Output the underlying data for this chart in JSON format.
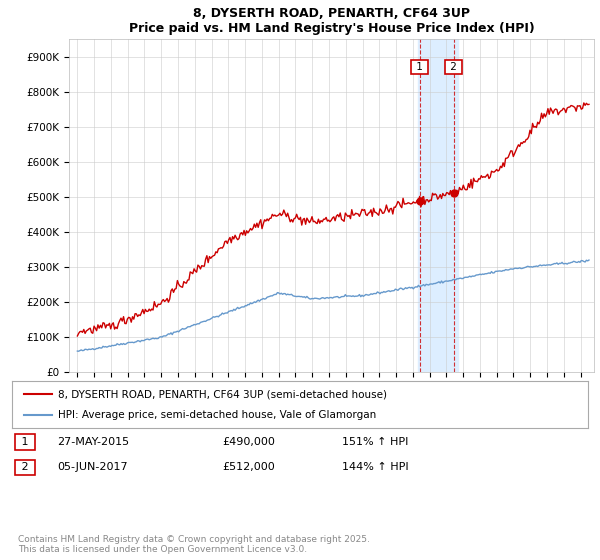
{
  "title": "8, DYSERTH ROAD, PENARTH, CF64 3UP",
  "subtitle": "Price paid vs. HM Land Registry's House Price Index (HPI)",
  "legend_line1": "8, DYSERTH ROAD, PENARTH, CF64 3UP (semi-detached house)",
  "legend_line2": "HPI: Average price, semi-detached house, Vale of Glamorgan",
  "ann1_num": "1",
  "ann1_date": "27-MAY-2015",
  "ann1_price": "£490,000",
  "ann1_hpi": "151% ↑ HPI",
  "ann2_num": "2",
  "ann2_date": "05-JUN-2017",
  "ann2_price": "£512,000",
  "ann2_hpi": "144% ↑ HPI",
  "purchase_price_1": 490000,
  "purchase_price_2": 512000,
  "purchase_x_1": 2015.41,
  "purchase_x_2": 2017.43,
  "hpi_color": "#6699cc",
  "price_color": "#cc0000",
  "highlight_color": "#ddeeff",
  "highlight_x1": 2015.3,
  "highlight_x2": 2017.7,
  "copyright": "Contains HM Land Registry data © Crown copyright and database right 2025.\nThis data is licensed under the Open Government Licence v3.0.",
  "ylim": [
    0,
    950000
  ],
  "xlim_left": 1994.5,
  "xlim_right": 2025.8
}
